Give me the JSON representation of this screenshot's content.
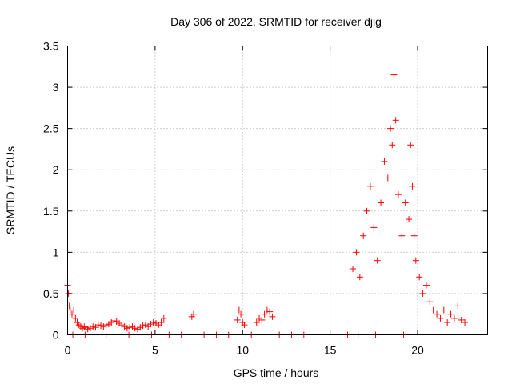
{
  "chart_data": {
    "type": "scatter",
    "title": "Day 306 of 2022, SRMTID for receiver djig",
    "xlabel": "GPS time / hours",
    "ylabel": "SRMTID / TECUs",
    "xlim": [
      0,
      24
    ],
    "ylim": [
      0,
      3.5
    ],
    "xticks": [
      0,
      5,
      10,
      15,
      20
    ],
    "xtick_labels": [
      "0",
      "5",
      "10",
      "15",
      "20"
    ],
    "yticks": [
      0,
      0.5,
      1,
      1.5,
      2,
      2.5,
      3,
      3.5
    ],
    "ytick_labels": [
      "0",
      "0.5",
      "1",
      "1.5",
      "2",
      "2.5",
      "3",
      "3.5"
    ],
    "grid": true,
    "marker": "plus",
    "series": [
      {
        "name": "SRMTID",
        "color": "#ff0000",
        "x": [
          0.0,
          0.05,
          0.1,
          0.15,
          0.25,
          0.35,
          0.45,
          0.55,
          0.65,
          0.75,
          0.85,
          0.95,
          1.05,
          1.15,
          1.3,
          1.45,
          1.6,
          1.75,
          1.9,
          2.05,
          2.2,
          2.35,
          2.5,
          2.65,
          2.8,
          2.95,
          3.1,
          3.25,
          3.4,
          3.55,
          3.7,
          3.85,
          4.0,
          4.15,
          4.3,
          4.45,
          4.6,
          4.75,
          4.9,
          5.05,
          5.2,
          5.35,
          5.5,
          7.1,
          7.2,
          9.7,
          9.8,
          9.9,
          10.0,
          10.1,
          10.8,
          10.95,
          11.1,
          11.25,
          11.4,
          11.55,
          11.7,
          16.3,
          16.5,
          16.7,
          16.9,
          17.1,
          17.3,
          17.5,
          17.7,
          17.9,
          18.1,
          18.3,
          18.45,
          18.55,
          18.65,
          18.75,
          18.9,
          19.1,
          19.3,
          19.5,
          19.6,
          19.7,
          19.8,
          19.9,
          20.1,
          20.3,
          20.5,
          20.7,
          20.9,
          21.1,
          21.3,
          21.5,
          21.7,
          21.9,
          22.1,
          22.3,
          22.5,
          22.7,
          0.3,
          1.0,
          2.2,
          3.5,
          4.8,
          5.8,
          6.5,
          7.8,
          8.5,
          9.2,
          10.5,
          12.1,
          12.8,
          13.5,
          16.0,
          16.6,
          17.6,
          19.2
        ],
        "y": [
          0.6,
          0.5,
          0.35,
          0.3,
          0.25,
          0.3,
          0.2,
          0.15,
          0.12,
          0.1,
          0.08,
          0.1,
          0.09,
          0.07,
          0.08,
          0.1,
          0.09,
          0.12,
          0.11,
          0.1,
          0.12,
          0.13,
          0.15,
          0.17,
          0.16,
          0.14,
          0.12,
          0.1,
          0.08,
          0.09,
          0.1,
          0.08,
          0.07,
          0.09,
          0.11,
          0.12,
          0.1,
          0.13,
          0.15,
          0.14,
          0.12,
          0.15,
          0.2,
          0.22,
          0.25,
          0.18,
          0.3,
          0.25,
          0.15,
          0.12,
          0.15,
          0.2,
          0.18,
          0.25,
          0.3,
          0.28,
          0.22,
          0.8,
          1.0,
          0.7,
          1.2,
          1.5,
          1.8,
          1.3,
          0.9,
          1.6,
          2.1,
          1.9,
          2.5,
          2.3,
          3.15,
          2.6,
          1.7,
          1.2,
          1.6,
          1.4,
          2.3,
          1.8,
          1.2,
          0.9,
          0.7,
          0.5,
          0.6,
          0.4,
          0.3,
          0.25,
          0.2,
          0.3,
          0.15,
          0.25,
          0.2,
          0.35,
          0.18,
          0.15,
          0.0,
          0.0,
          0.0,
          0.0,
          0.0,
          0.0,
          0.0,
          0.0,
          0.0,
          0.0,
          0.0,
          0.0,
          0.0,
          0.0,
          0.0,
          0.0,
          0.0,
          0.0
        ]
      }
    ]
  }
}
